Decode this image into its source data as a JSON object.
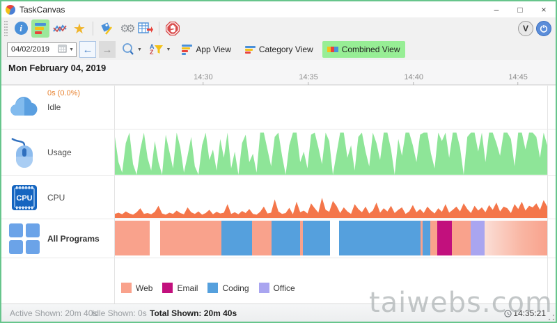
{
  "window": {
    "title": "TaskCanvas",
    "border_color": "#67c58c"
  },
  "titlebar": {
    "minimize": "–",
    "maximize": "□",
    "close": "×"
  },
  "toolbar": {
    "info": "i",
    "right": {
      "updates_label": "V"
    }
  },
  "nav": {
    "date_value": "04/02/2019",
    "back": "←",
    "forward": "→",
    "views": [
      {
        "label": "App View",
        "active": false
      },
      {
        "label": "Category View",
        "active": false
      },
      {
        "label": "Combined View",
        "active": true
      }
    ]
  },
  "header": {
    "date_label": "Mon February 04, 2019",
    "time_ticks": [
      {
        "label": "14:30",
        "pct": 20.4
      },
      {
        "label": "14:35",
        "pct": 44.7
      },
      {
        "label": "14:40",
        "pct": 69.0
      },
      {
        "label": "14:45",
        "pct": 93.1
      }
    ]
  },
  "rows": [
    {
      "label": "Idle",
      "badge": "0s (0.0%)"
    },
    {
      "label": "Usage"
    },
    {
      "label": "CPU"
    },
    {
      "label": "All Programs"
    }
  ],
  "legend": {
    "items": [
      {
        "label": "Web",
        "color": "#f9a28c"
      },
      {
        "label": "Email",
        "color": "#c2107d"
      },
      {
        "label": "Coding",
        "color": "#55a0dd"
      },
      {
        "label": "Office",
        "color": "#a9a5f0"
      }
    ]
  },
  "statusbar": {
    "active": "Active Shown: 20m 40s",
    "idle": "Idle Shown: 0s",
    "total": "Total Shown: 20m 40s",
    "clock": "14:35:21"
  },
  "watermark": "taiwebs.com",
  "chart_data": {
    "usage": {
      "type": "area",
      "color": "#8ee598",
      "ylim": [
        0,
        100
      ],
      "values": [
        90,
        30,
        5,
        75,
        100,
        25,
        0,
        60,
        100,
        40,
        10,
        80,
        30,
        0,
        95,
        55,
        15,
        100,
        65,
        5,
        45,
        90,
        20,
        0,
        70,
        100,
        35,
        60,
        10,
        85,
        40,
        100,
        15,
        55,
        0,
        75,
        95,
        30,
        50,
        5,
        100,
        100,
        60,
        20,
        90,
        100,
        45,
        0,
        70,
        100,
        100,
        30,
        55,
        15,
        95,
        100,
        65,
        25,
        100,
        80,
        0,
        50,
        100,
        100,
        40,
        70,
        10,
        90,
        100,
        55,
        20,
        100,
        75,
        35,
        100,
        100,
        60,
        0,
        85,
        45,
        100,
        100,
        70,
        30,
        95,
        100,
        100,
        50,
        15,
        100,
        80,
        100,
        40,
        100,
        100,
        65,
        0,
        90,
        100,
        100,
        55,
        100,
        30,
        100,
        100,
        75,
        45,
        100,
        100,
        85,
        20,
        100,
        100,
        60,
        100,
        100,
        90,
        40,
        100,
        70
      ]
    },
    "cpu": {
      "type": "area",
      "color": "#f4764a",
      "ylim": [
        0,
        100
      ],
      "values": [
        10,
        13,
        9,
        16,
        11,
        8,
        14,
        24,
        10,
        12,
        9,
        15,
        30,
        11,
        8,
        13,
        10,
        18,
        12,
        9,
        26,
        14,
        10,
        16,
        8,
        12,
        20,
        9,
        15,
        11,
        13,
        34,
        10,
        14,
        9,
        17,
        12,
        22,
        10,
        8,
        15,
        28,
        11,
        13,
        46,
        16,
        10,
        12,
        25,
        9,
        40,
        14,
        18,
        11,
        36,
        24,
        13,
        50,
        20,
        15,
        42,
        30,
        12,
        26,
        16,
        10,
        34,
        22,
        14,
        28,
        11,
        18,
        38,
        13,
        24,
        16,
        30,
        12,
        20,
        26,
        10,
        16,
        32,
        14,
        22,
        12,
        28,
        18,
        11,
        24,
        15,
        34,
        13,
        20,
        28,
        16,
        36,
        22,
        12,
        30,
        18,
        26,
        14,
        32,
        20,
        38,
        16,
        28,
        24,
        12,
        34,
        22,
        40,
        18,
        30,
        26,
        36,
        20,
        44,
        28
      ]
    },
    "programs": {
      "type": "timeline-bar",
      "colors": {
        "Web": "#f9a28c",
        "Email": "#c2107d",
        "Coding": "#55a0dd",
        "Office": "#a9a5f0"
      },
      "segments": [
        {
          "category": "Web",
          "start": 0,
          "end": 8.0
        },
        {
          "category": "Web",
          "start": 10.5,
          "end": 24.6
        },
        {
          "category": "Coding",
          "start": 24.6,
          "end": 31.8
        },
        {
          "category": "Web",
          "start": 31.8,
          "end": 36.2
        },
        {
          "category": "Coding",
          "start": 36.2,
          "end": 42.8
        },
        {
          "category": "Web",
          "start": 42.8,
          "end": 43.4
        },
        {
          "category": "Coding",
          "start": 43.4,
          "end": 49.7
        },
        {
          "category": "Coding",
          "start": 51.9,
          "end": 70.7
        },
        {
          "category": "Web",
          "start": 70.7,
          "end": 71.2
        },
        {
          "category": "Coding",
          "start": 71.2,
          "end": 73.0
        },
        {
          "category": "Web",
          "start": 73.0,
          "end": 74.6
        },
        {
          "category": "Email",
          "start": 74.6,
          "end": 78.0
        },
        {
          "category": "Web",
          "start": 78.0,
          "end": 82.3
        },
        {
          "category": "Office",
          "start": 82.3,
          "end": 85.5
        },
        {
          "category": "Web",
          "start": 85.5,
          "end": 100,
          "fade": true
        }
      ]
    }
  }
}
